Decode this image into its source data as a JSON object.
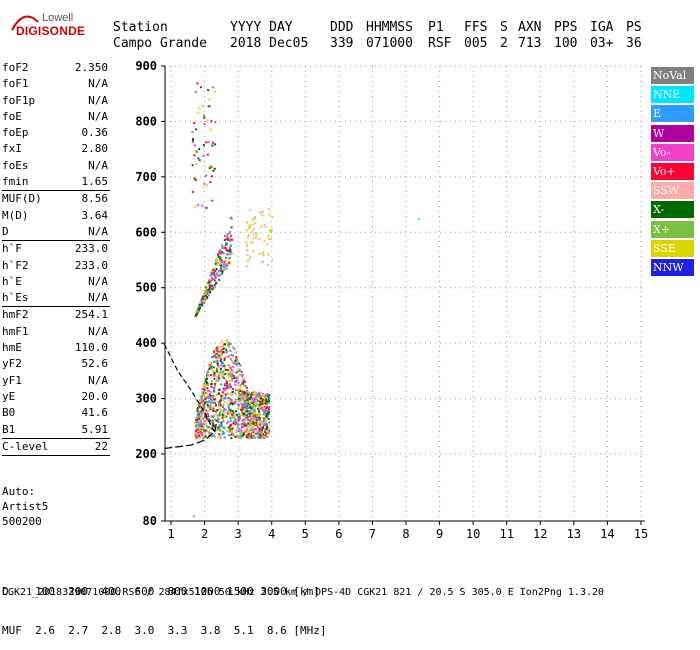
{
  "logo": {
    "line1": "Lowell",
    "line2": "DIGISONDE"
  },
  "header": {
    "labels": [
      "Station",
      "YYYY DAY",
      "DDD",
      "HHMMSS",
      "P1",
      "FFS",
      "S",
      "AXN",
      "PPS",
      "IGA",
      "PS"
    ],
    "values": [
      "Campo Grande",
      "2018 Dec05",
      "339",
      "071000",
      "RSF",
      "005",
      "2",
      "713",
      "100",
      "03+",
      "36"
    ]
  },
  "params": [
    {
      "k": "foF2",
      "v": "2.350"
    },
    {
      "k": "foF1",
      "v": "N/A"
    },
    {
      "k": "foF1p",
      "v": "N/A"
    },
    {
      "k": "foE",
      "v": "N/A"
    },
    {
      "k": "foEp",
      "v": "0.36"
    },
    {
      "k": "fxI",
      "v": "2.80"
    },
    {
      "k": "foEs",
      "v": "N/A"
    },
    {
      "k": "fmin",
      "v": "1.65",
      "sep": true
    },
    {
      "k": "MUF(D)",
      "v": "8.56"
    },
    {
      "k": "M(D)",
      "v": "3.64"
    },
    {
      "k": "D",
      "v": "N/A",
      "sep": true
    },
    {
      "k": "h`F",
      "v": "233.0"
    },
    {
      "k": "h`F2",
      "v": "233.0"
    },
    {
      "k": "h`E",
      "v": "N/A"
    },
    {
      "k": "h`Es",
      "v": "N/A",
      "sep": true
    },
    {
      "k": "hmF2",
      "v": "254.1"
    },
    {
      "k": "hmF1",
      "v": "N/A"
    },
    {
      "k": "hmE",
      "v": "110.0"
    },
    {
      "k": "yF2",
      "v": "52.6"
    },
    {
      "k": "yF1",
      "v": "N/A"
    },
    {
      "k": "yE",
      "v": "20.0"
    },
    {
      "k": "B0",
      "v": "41.6"
    },
    {
      "k": "B1",
      "v": "5.91",
      "sep": true
    },
    {
      "k": "C-level",
      "v": "22",
      "sep": true
    }
  ],
  "auto": {
    "l1": "Auto:",
    "l2": "Artist5",
    "l3": "500200"
  },
  "legend": [
    {
      "label": "NoVal",
      "color": "#808080"
    },
    {
      "label": "NNE",
      "color": "#00e5ff"
    },
    {
      "label": "E",
      "color": "#2d9bff"
    },
    {
      "label": "W",
      "color": "#b0009e"
    },
    {
      "label": "Vo-",
      "color": "#f040c8"
    },
    {
      "label": "Vo+",
      "color": "#ff0030"
    },
    {
      "label": "SSW",
      "color": "#ffaaaa"
    },
    {
      "label": "X-",
      "color": "#006a00"
    },
    {
      "label": "X+",
      "color": "#78c040"
    },
    {
      "label": "SSE",
      "color": "#d6d600"
    },
    {
      "label": "NNW",
      "color": "#2020e0"
    }
  ],
  "bottom": {
    "l1": "D    100  200  400  600  800 1000 1500 3000 [km]",
    "l2": "MUF  2.6  2.7  2.8  3.0  3.3  3.8  5.1  8.6 [MHz]"
  },
  "footer": "CGK21_2018339071000.RSF / 284fx512h 50 kHz 2.5 km / DPS-4D CGK21 821 / 20.5 S 305.0 E Ion2Png 1.3.20",
  "chart_data": {
    "type": "scatter",
    "title": "",
    "xlabel": "",
    "ylabel": "",
    "xlim": [
      0.8,
      15.3
    ],
    "ylim": [
      80,
      910
    ],
    "xticks": [
      1,
      2,
      3,
      4,
      5,
      6,
      7,
      8,
      9,
      10,
      11,
      12,
      13,
      14,
      15
    ],
    "yticks": [
      80,
      200,
      300,
      400,
      500,
      600,
      700,
      800,
      900
    ],
    "grid": true,
    "legend_position": "right",
    "clusters": [
      {
        "freq_range": [
          1.7,
          3.9
        ],
        "height_range": [
          230,
          390
        ],
        "series": [
          "SSE",
          "SSW",
          "X+",
          "Vo+",
          "Vo-",
          "X-",
          "E"
        ]
      },
      {
        "freq_range": [
          1.7,
          2.8
        ],
        "height_range": [
          450,
          620
        ],
        "series": [
          "Vo+",
          "Vo-",
          "X-",
          "E",
          "SSE"
        ]
      },
      {
        "freq_range": [
          1.6,
          2.3
        ],
        "height_range": [
          640,
          880
        ],
        "series": [
          "Vo+",
          "Vo-",
          "SSE",
          "X-"
        ]
      },
      {
        "freq_range": [
          3.2,
          4.0
        ],
        "height_range": [
          540,
          650
        ],
        "series": [
          "SSE",
          "SSW"
        ]
      }
    ],
    "isolated_points": [
      {
        "x": 8.35,
        "y": 625,
        "series": "NNE"
      },
      {
        "x": 1.65,
        "y": 90,
        "series": "X+"
      }
    ],
    "profile_curve": [
      [
        0.8,
        210
      ],
      [
        1.6,
        216
      ],
      [
        2.0,
        225
      ],
      [
        2.3,
        240
      ],
      [
        2.35,
        254
      ]
    ],
    "dashed_curve": [
      [
        0.8,
        398
      ],
      [
        1.2,
        350
      ],
      [
        1.6,
        315
      ],
      [
        2.0,
        275
      ],
      [
        2.2,
        250
      ],
      [
        2.3,
        240
      ]
    ]
  }
}
